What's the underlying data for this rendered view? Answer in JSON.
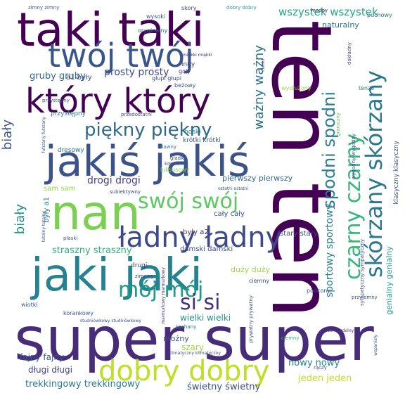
{
  "words": [
    {
      "text": "ten ten",
      "color": "#440154"
    },
    {
      "text": "super super",
      "color": "#472c7a"
    },
    {
      "text": "taki taki",
      "color": "#440154"
    },
    {
      "text": "jakiś jakiś",
      "color": "#3b528b"
    },
    {
      "text": "nan",
      "color": "#7ad151"
    },
    {
      "text": "jaki jaki",
      "color": "#26828e"
    },
    {
      "text": "twój twój",
      "color": "#39568c"
    },
    {
      "text": "który który",
      "color": "#440154"
    },
    {
      "text": "ładny ładny",
      "color": "#3e4989"
    },
    {
      "text": "dobry dobry",
      "color": "#bddf26"
    },
    {
      "text": "piękny piękny",
      "color": "#31688e"
    },
    {
      "text": "swój swój",
      "color": "#5ec962"
    },
    {
      "text": "mój mój",
      "color": "#1f9a8a"
    },
    {
      "text": "si si",
      "color": "#46327e"
    },
    {
      "text": "czarny czarny",
      "color": "#35b779"
    },
    {
      "text": "skórzany skórzany",
      "color": "#2a788e"
    },
    {
      "text": "spodni spodni",
      "color": "#287d8e"
    },
    {
      "text": "ważny ważny",
      "color": "#2c728e"
    },
    {
      "text": "biały",
      "color": "#3b528b"
    },
    {
      "text": "biały",
      "color": "#21918c"
    },
    {
      "text": "wszystek wszystek",
      "color": "#22a884"
    },
    {
      "text": "prosty prosty",
      "color": "#3e4a89"
    },
    {
      "text": "gruby gruby",
      "color": "#31688e"
    },
    {
      "text": "drogi drogi",
      "color": "#414487"
    },
    {
      "text": "sportowy sportowy",
      "color": "#26828e"
    },
    {
      "text": "strasznу straszny",
      "color": "#2db27d"
    },
    {
      "text": "trekkingowy trekkingowy",
      "color": "#287c8e"
    },
    {
      "text": "świetny świetny",
      "color": "#3b528b"
    },
    {
      "text": "jeden jeden",
      "color": "#c2df23"
    },
    {
      "text": "nowy nowy",
      "color": "#25858e"
    },
    {
      "text": "fajny fajny",
      "color": "#39568c"
    },
    {
      "text": "długi długi",
      "color": "#414487"
    },
    {
      "text": "wielki wielki",
      "color": "#20928c"
    },
    {
      "text": "szary",
      "color": "#a0da39"
    },
    {
      "text": "możny",
      "color": "#3b528b"
    },
    {
      "text": "duży duży",
      "color": "#9bd93c"
    },
    {
      "text": "pierwszy pierwszy",
      "color": "#31688e"
    },
    {
      "text": "damski damski",
      "color": "#3e4c8a"
    },
    {
      "text": "stary stary",
      "color": "#414487"
    },
    {
      "text": "cały cały",
      "color": "#3b528b"
    },
    {
      "text": "były a2",
      "color": "#46337f"
    },
    {
      "text": "były a1",
      "color": "#2a788e"
    },
    {
      "text": "a1 były",
      "color": "#3e4989"
    },
    {
      "text": "sam sam",
      "color": "#8fd744"
    },
    {
      "text": "naturalny",
      "color": "#2c728e"
    },
    {
      "text": "genialny genialny",
      "color": "#1fa187"
    },
    {
      "text": "klasyczny klasyczny",
      "color": "#3b528b"
    },
    {
      "text": "drugi",
      "color": "#3e4a89"
    },
    {
      "text": "krótki krótki",
      "color": "#3b528b"
    },
    {
      "text": "boski",
      "color": "#228d8d"
    },
    {
      "text": "dresowy",
      "color": "#2a788e"
    },
    {
      "text": "przystępny",
      "color": "#287d8e"
    },
    {
      "text": "inny",
      "color": "#46327e"
    },
    {
      "text": "skory",
      "color": "#3e4a89"
    },
    {
      "text": "wysoki",
      "color": "#3b528b"
    },
    {
      "text": "oryginalny",
      "color": "#31688e"
    },
    {
      "text": "dobry dobry",
      "color": "#1fa088"
    },
    {
      "text": "puchowy",
      "color": "#2c728e"
    },
    {
      "text": "beżowy",
      "color": "#3b528b"
    },
    {
      "text": "goły",
      "color": "#46327e"
    },
    {
      "text": "tenze",
      "color": "#2a788e"
    },
    {
      "text": "dokładny",
      "color": "#3e4a89"
    },
    {
      "text": "wydłużony",
      "color": "#9bd93c"
    },
    {
      "text": "podcony",
      "color": "#3b528b"
    },
    {
      "text": "ciemny",
      "color": "#3e4989"
    },
    {
      "text": "kochany",
      "color": "#2a788e"
    },
    {
      "text": "wiotki",
      "color": "#3b528b"
    },
    {
      "text": "korankowy",
      "color": "#3b528b"
    },
    {
      "text": "zimowy",
      "color": "#3e4a89"
    },
    {
      "text": "luksusowy",
      "color": "#8fd744"
    },
    {
      "text": "dawny",
      "color": "#2a788e"
    },
    {
      "text": "gladki",
      "color": "#3e4989"
    },
    {
      "text": "subiektywny",
      "color": "#3e4989"
    },
    {
      "text": "kremowy",
      "color": "#3b528b"
    },
    {
      "text": "przystępny",
      "color": "#3b528b"
    },
    {
      "text": "przedostatni",
      "color": "#3e4989"
    },
    {
      "text": "ciemny",
      "color": "#35b779"
    },
    {
      "text": "płaski",
      "color": "#3b528b"
    },
    {
      "text": "sympatyczny sympatyczny",
      "color": "#3e4989"
    },
    {
      "text": "graniczny",
      "color": "#5ec962"
    },
    {
      "text": "wygodny wygodny",
      "color": "#3b528b"
    },
    {
      "text": "modny",
      "color": "#46327e"
    },
    {
      "text": "prywatny prywatny",
      "color": "#3b528b"
    },
    {
      "text": "rączy",
      "color": "#3b528b"
    },
    {
      "text": "przyjemny",
      "color": "#3b528b"
    },
    {
      "text": "klimatyczny klimatyczny",
      "color": "#3b528b"
    },
    {
      "text": "studniówkowy studniówkowy",
      "color": "#3b528b"
    },
    {
      "text": "marmurkowy marmurkowy",
      "color": "#46327e"
    },
    {
      "text": "futrzany futrzany",
      "color": "#3b528b"
    },
    {
      "text": "totalny totalny",
      "color": "#3b528b"
    },
    {
      "text": "cienki",
      "color": "#3b528b"
    },
    {
      "text": "zdolny zdolny",
      "color": "#46327e"
    },
    {
      "text": "głupi głupi",
      "color": "#3e4989"
    },
    {
      "text": "miękki miękki",
      "color": "#46327e"
    },
    {
      "text": "ostatni ostatni",
      "color": "#3b528b"
    },
    {
      "text": "zimny zimny",
      "color": "#3b528b"
    },
    {
      "text": "wspaniały",
      "color": "#3b528b"
    }
  ]
}
